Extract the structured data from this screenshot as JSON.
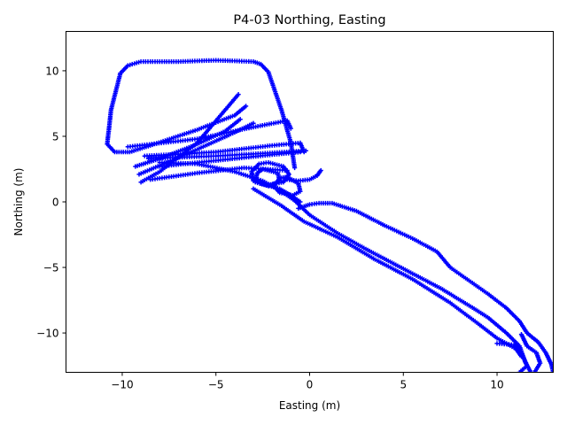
{
  "chart_data": {
    "type": "scatter",
    "title": "P4-03 Northing, Easting",
    "xlabel": "Easting (m)",
    "ylabel": "Northing (m)",
    "xlim": [
      -13,
      13
    ],
    "ylim": [
      -13,
      13
    ],
    "xticks": [
      -10,
      -5,
      0,
      5,
      10
    ],
    "yticks": [
      -10,
      -5,
      0,
      5,
      10
    ],
    "xtick_labels": [
      "−10",
      "−5",
      "0",
      "5",
      "10"
    ],
    "ytick_labels": [
      "−10",
      "−5",
      "0",
      "5",
      "10"
    ],
    "grid": false,
    "legend": "none",
    "marker": "+",
    "series": [
      {
        "color": "#0000ff",
        "segments": [
          [
            [
              -10.1,
              9.8
            ],
            [
              -9.7,
              10.4
            ],
            [
              -9.0,
              10.7
            ],
            [
              -7.0,
              10.7
            ],
            [
              -5.0,
              10.8
            ],
            [
              -3.0,
              10.7
            ],
            [
              -2.6,
              10.5
            ],
            [
              -2.2,
              9.9
            ],
            [
              -1.5,
              7.0
            ],
            [
              -1.0,
              4.5
            ],
            [
              -0.8,
              2.6
            ]
          ],
          [
            [
              -10.1,
              9.8
            ],
            [
              -10.6,
              7.0
            ],
            [
              -10.8,
              4.4
            ],
            [
              -10.4,
              3.8
            ],
            [
              -9.6,
              3.8
            ],
            [
              -8.5,
              4.3
            ],
            [
              -6.0,
              5.5
            ],
            [
              -4.0,
              6.6
            ],
            [
              -3.4,
              7.3
            ]
          ],
          [
            [
              -9.7,
              4.2
            ],
            [
              -6.0,
              4.8
            ],
            [
              -3.0,
              5.7
            ],
            [
              -1.2,
              6.2
            ],
            [
              -1.0,
              5.6
            ]
          ],
          [
            [
              -8.8,
              3.5
            ],
            [
              -5.0,
              3.8
            ],
            [
              -2.0,
              4.3
            ],
            [
              -0.5,
              4.5
            ],
            [
              -0.3,
              3.8
            ]
          ],
          [
            [
              -8.6,
              3.3
            ],
            [
              -5.0,
              3.5
            ],
            [
              -2.5,
              3.7
            ],
            [
              -0.2,
              3.9
            ]
          ],
          [
            [
              -8.0,
              2.7
            ],
            [
              -4.0,
              3.3
            ],
            [
              -2.0,
              3.6
            ],
            [
              -0.5,
              3.8
            ]
          ],
          [
            [
              -9.1,
              2.1
            ],
            [
              -6.0,
              4.0
            ],
            [
              -4.0,
              5.3
            ],
            [
              -3.0,
              6.0
            ]
          ],
          [
            [
              -9.0,
              1.5
            ],
            [
              -8.0,
              2.3
            ],
            [
              -6.0,
              4.5
            ],
            [
              -3.8,
              8.2
            ]
          ],
          [
            [
              -8.5,
              1.7
            ],
            [
              -6.0,
              2.2
            ],
            [
              -3.5,
              2.6
            ],
            [
              -1.2,
              2.4
            ]
          ],
          [
            [
              -9.3,
              2.7
            ],
            [
              -8.0,
              3.3
            ],
            [
              -6.0,
              4.4
            ],
            [
              -4.5,
              5.4
            ],
            [
              -3.7,
              6.3
            ]
          ],
          [
            [
              -8.0,
              3.0
            ],
            [
              -6.0,
              2.9
            ],
            [
              -4.0,
              2.3
            ],
            [
              -2.5,
              1.6
            ],
            [
              -1.5,
              0.8
            ],
            [
              -0.8,
              0.1
            ],
            [
              0.0,
              -1.0
            ],
            [
              1.5,
              -2.4
            ],
            [
              3.0,
              -3.6
            ],
            [
              5.0,
              -5.1
            ],
            [
              7.0,
              -6.6
            ],
            [
              8.5,
              -7.9
            ],
            [
              9.5,
              -8.8
            ],
            [
              10.5,
              -10.0
            ],
            [
              11.2,
              -11.0
            ],
            [
              11.5,
              -12.2
            ],
            [
              11.8,
              -13.0
            ]
          ],
          [
            [
              -3.0,
              1.0
            ],
            [
              -1.5,
              -0.3
            ],
            [
              -0.3,
              -1.5
            ],
            [
              1.5,
              -2.7
            ],
            [
              3.5,
              -4.4
            ],
            [
              5.5,
              -5.9
            ],
            [
              7.5,
              -7.7
            ],
            [
              9.0,
              -9.3
            ],
            [
              10.0,
              -10.4
            ],
            [
              11.0,
              -11.2
            ],
            [
              11.3,
              -11.8
            ]
          ],
          [
            [
              -0.6,
              -0.5
            ],
            [
              0.0,
              -0.2
            ],
            [
              0.5,
              -0.1
            ],
            [
              1.2,
              -0.1
            ],
            [
              2.5,
              -0.7
            ],
            [
              4.0,
              -1.8
            ],
            [
              5.5,
              -2.8
            ],
            [
              6.8,
              -3.8
            ],
            [
              7.5,
              -5.0
            ],
            [
              8.5,
              -6.0
            ],
            [
              9.5,
              -7.0
            ],
            [
              10.5,
              -8.1
            ],
            [
              11.2,
              -9.1
            ],
            [
              11.6,
              -10.0
            ],
            [
              12.2,
              -10.7
            ],
            [
              12.6,
              -11.5
            ],
            [
              12.9,
              -12.4
            ],
            [
              13.0,
              -13.0
            ]
          ],
          [
            [
              10.0,
              -10.8
            ],
            [
              10.9,
              -10.9
            ],
            [
              11.3,
              -11.5
            ],
            [
              11.6,
              -12.5
            ],
            [
              11.2,
              -13.0
            ]
          ],
          [
            [
              11.3,
              -10.1
            ],
            [
              11.6,
              -11.0
            ],
            [
              12.1,
              -11.5
            ],
            [
              12.3,
              -12.3
            ],
            [
              12.0,
              -13.0
            ]
          ],
          [
            [
              -2.2,
              3.0
            ],
            [
              -1.4,
              2.7
            ],
            [
              -1.1,
              2.1
            ],
            [
              -1.4,
              1.5
            ],
            [
              -2.2,
              1.3
            ],
            [
              -3.0,
              1.6
            ],
            [
              -3.1,
              2.3
            ],
            [
              -2.7,
              2.9
            ],
            [
              -2.2,
              3.0
            ]
          ],
          [
            [
              -2.5,
              2.5
            ],
            [
              -1.7,
              2.2
            ],
            [
              -1.6,
              1.6
            ],
            [
              -2.2,
              1.2
            ],
            [
              -2.9,
              1.5
            ],
            [
              -2.8,
              2.2
            ],
            [
              -2.5,
              2.5
            ]
          ],
          [
            [
              -1.2,
              1.9
            ],
            [
              -0.6,
              1.4
            ],
            [
              -0.5,
              0.8
            ],
            [
              -0.9,
              0.5
            ],
            [
              -1.6,
              0.7
            ],
            [
              -1.9,
              1.2
            ],
            [
              -1.6,
              1.8
            ],
            [
              -1.2,
              1.9
            ]
          ],
          [
            [
              -1.2,
              1.7
            ],
            [
              -0.6,
              1.6
            ],
            [
              0.0,
              1.7
            ],
            [
              0.4,
              2.0
            ],
            [
              0.6,
              2.4
            ]
          ],
          [
            [
              -2.6,
              1.4
            ],
            [
              -1.6,
              1.0
            ],
            [
              -1.0,
              0.5
            ],
            [
              -0.5,
              0.0
            ]
          ]
        ]
      }
    ]
  }
}
